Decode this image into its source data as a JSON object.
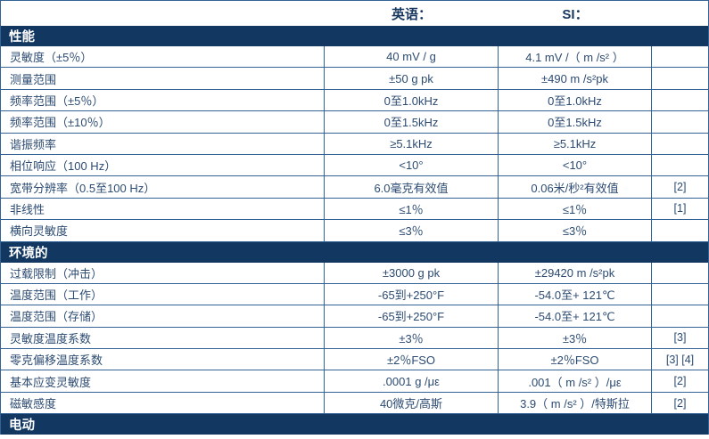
{
  "colors": {
    "section_bg": "#123862",
    "border": "#336396",
    "text": "#2C4B72",
    "section_text": "#FFFFFF"
  },
  "table": {
    "header": {
      "label_col": "",
      "english_col": "英语：",
      "si_col": "SI：",
      "note_col": ""
    },
    "sections": [
      {
        "title": "性能",
        "rows": [
          {
            "label": "灵敏度（±5％）",
            "english": "40 mV / g",
            "si": "4.1 mV /（ m /s² ）",
            "note": ""
          },
          {
            "label": "测量范围",
            "english": "±50 g pk",
            "si": "±490 m /s²pk",
            "note": ""
          },
          {
            "label": "频率范围（±5％）",
            "english": "0至1.0kHz",
            "si": "0至1.0kHz",
            "note": ""
          },
          {
            "label": "频率范围（±10％）",
            "english": "0至1.5kHz",
            "si": "0至1.5kHz",
            "note": ""
          },
          {
            "label": "谐振频率",
            "english": "≥5.1kHz",
            "si": "≥5.1kHz",
            "note": ""
          },
          {
            "label": "相位响应（100 Hz）",
            "english": "<10°",
            "si": "<10°",
            "note": ""
          },
          {
            "label": "宽带分辨率（0.5至100 Hz）",
            "english": "6.0毫克有效值",
            "si": "0.06米/秒²有效值",
            "note": "[2]"
          },
          {
            "label": "非线性",
            "english": "≤1％",
            "si": "≤1％",
            "note": "[1]"
          },
          {
            "label": "横向灵敏度",
            "english": "≤3％",
            "si": "≤3％",
            "note": ""
          }
        ]
      },
      {
        "title": "环境的",
        "rows": [
          {
            "label": "过载限制（冲击）",
            "english": "±3000 g pk",
            "si": "±29420 m /s²pk",
            "note": ""
          },
          {
            "label": "温度范围（工作）",
            "english": "-65到+250°F",
            "si": "-54.0至+ 121℃",
            "note": ""
          },
          {
            "label": "温度范围（存储）",
            "english": "-65到+250°F",
            "si": "-54.0至+ 121℃",
            "note": ""
          },
          {
            "label": "灵敏度温度系数",
            "english": "±3％",
            "si": "±3％",
            "note": "[3]"
          },
          {
            "label": "零克偏移温度系数",
            "english": "±2％FSO",
            "si": "±2％FSO",
            "note": "[3] [4]"
          },
          {
            "label": "基本应变灵敏度",
            "english": ".0001 g /με",
            "si": ".001（ m /s² ）/με",
            "note": "[2]"
          },
          {
            "label": "磁敏感度",
            "english": "40微克/高斯",
            "si": "3.9（ m /s² ）/特斯拉",
            "note": "[2]"
          }
        ]
      },
      {
        "title": "电动",
        "rows": []
      }
    ]
  }
}
